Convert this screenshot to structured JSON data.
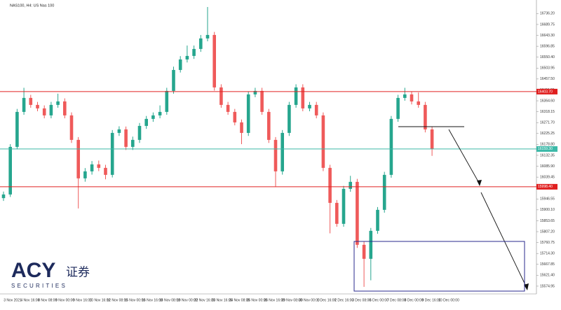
{
  "chart_data": {
    "type": "candlestick",
    "title": "NAS100, H4:  US Nas 100",
    "up_color": "#26a68e",
    "down_color": "#ef5a5a",
    "open": [
      15950.0,
      15965.6,
      16168.3,
      16317.3,
      16376.9,
      16347.1,
      16332.2,
      16302.4,
      16347.1,
      16361.9,
      16302.4,
      16198.1,
      16034.2,
      16064.0,
      16093.8,
      16078.9,
      16049.1,
      16227.8,
      16242.8,
      16168.3,
      16198.1,
      16257.6,
      16287.5,
      16302.4,
      16317.3,
      16406.7,
      16496.0,
      16540.7,
      16555.7,
      16585.5,
      16630.2,
      16645.1,
      16421.6,
      16347.1,
      16317.3,
      16272.6,
      16227.8,
      16391.8,
      16406.7,
      16317.3,
      16198.1,
      16064.0,
      16227.8,
      16347.1,
      16421.6,
      16332.2,
      16347.1,
      16302.4,
      16078.9,
      15929.8,
      15840.5,
      15989.5,
      16019.3,
      15751.1,
      15691.5,
      15810.7,
      15900.1,
      16049.1,
      16287.5,
      16376.9,
      16391.8,
      16361.9,
      16347.1,
      16242.8
    ],
    "high": [
      15978,
      16180,
      16330,
      16420,
      16390,
      16360,
      16345,
      16360,
      16395,
      16375,
      16315,
      16210,
      16078,
      16108,
      16110,
      16092,
      16240,
      16256,
      16255,
      16212,
      16270,
      16300,
      16315,
      16345,
      16420,
      16510,
      16555,
      16600,
      16600,
      16645,
      16764,
      16658,
      16435,
      16360,
      16330,
      16285,
      16405,
      16420,
      16420,
      16330,
      16210,
      16240,
      16360,
      16435,
      16435,
      16360,
      16360,
      16315,
      16092,
      15942,
      16002,
      16045,
      16032,
      15764,
      15823,
      15912,
      16062,
      16300,
      16390,
      16420,
      16405,
      16400,
      16360,
      16255
    ],
    "low": [
      15938,
      15955,
      16158,
      16305,
      16335,
      16320,
      16290,
      16290,
      16335,
      16290,
      16185,
      15906,
      16020,
      16050,
      16065,
      16030,
      16038,
      16215,
      16155,
      16155,
      16185,
      16245,
      16275,
      16290,
      16305,
      16395,
      16485,
      16528,
      16543,
      16573,
      16618,
      16408,
      16335,
      16305,
      16260,
      16180,
      16215,
      16380,
      16305,
      16185,
      16000,
      16050,
      16215,
      16335,
      16320,
      16320,
      16290,
      16065,
      15800,
      15828,
      15828,
      15977,
      15738,
      15572,
      15600,
      15798,
      15888,
      16037,
      16275,
      16365,
      16349,
      16335,
      16230,
      16130
    ],
    "close": [
      15965.6,
      16168.3,
      16317.3,
      16376.9,
      16347.1,
      16332.2,
      16302.4,
      16347.1,
      16361.9,
      16302.4,
      16198.1,
      16034.2,
      16064.0,
      16093.8,
      16078.9,
      16049.1,
      16227.8,
      16242.8,
      16168.3,
      16198.1,
      16257.6,
      16287.5,
      16302.4,
      16317.3,
      16406.7,
      16496.0,
      16540.7,
      16555.7,
      16585.5,
      16630.2,
      16645.1,
      16421.6,
      16347.1,
      16317.3,
      16272.6,
      16227.8,
      16391.8,
      16406.7,
      16317.3,
      16198.1,
      16064.0,
      16227.8,
      16347.1,
      16421.6,
      16332.2,
      16347.1,
      16302.4,
      16078.9,
      15929.8,
      15840.5,
      15989.5,
      16019.3,
      15751.1,
      15691.5,
      15810.7,
      15900.1,
      16049.1,
      16287.5,
      16376.9,
      16391.8,
      16361.9,
      16347.1,
      16242.8,
      16159.3
    ],
    "x_labels": [
      "3 Nov 2021",
      "4 Nov 16:00",
      "8 Nov 08:00",
      "9 Nov 00:00",
      "9 Nov 16:00",
      "10 Nov 16:00",
      "12 Nov 08:00",
      "15 Nov 00:00",
      "16 Nov 16:00",
      "18 Nov 08:00",
      "19 Nov 00:00",
      "22 Nov 16:00",
      "23 Nov 16:00",
      "24 Nov 08:00",
      "25 Nov 00:00",
      "26 Nov 16:00",
      "29 Nov 08:00",
      "30 Nov 00:00",
      "1 Dec 16:00",
      "2 Dec 16:00",
      "3 Dec 08:00",
      "6 Dec 00:00",
      "7 Dec 08:00",
      "8 Dec 00:00",
      "9 Dec 16:00",
      "10 Dec 00:00"
    ],
    "ylim": [
      15542,
      16788
    ],
    "yticks": [
      15574.95,
      {
        "value": 15621.4,
        "label": "15621.40"
      },
      15667.85,
      {
        "value": 15714.3,
        "label": "15714.30"
      },
      15760.75,
      {
        "value": 15807.2,
        "label": "15807.20"
      },
      15853.65,
      {
        "value": 15900.1,
        "label": "15900.10"
      },
      15946.55,
      {
        "value": 15993,
        "label": "15993.00"
      },
      16039.45,
      {
        "value": 16085.9,
        "label": "16085.90"
      },
      16132.35,
      {
        "value": 16178.8,
        "label": "16178.80"
      },
      16225.25,
      {
        "value": 16271.7,
        "label": "16271.70"
      },
      16318.15,
      {
        "value": 16364.6,
        "label": "16364.60"
      },
      16411.05,
      {
        "value": 16457.5,
        "label": "16457.50"
      },
      16503.95,
      {
        "value": 16550.4,
        "label": "16550.40"
      },
      16596.85,
      {
        "value": 16643.3,
        "label": "16643.30"
      },
      16689.75,
      {
        "value": 16736.2,
        "label": "16736.20"
      }
    ],
    "levels": [
      {
        "value": 16403.7,
        "label": "16403.70",
        "color": "#e02020"
      },
      {
        "value": 16159.3,
        "label": "16159.30",
        "color": "#3cb9a8"
      },
      {
        "value": 15998.4,
        "label": "15998.40",
        "color": "#e02020"
      }
    ]
  },
  "logo": {
    "name": "ACY",
    "chinese": "证券",
    "subtitle": "SECURITIES"
  }
}
